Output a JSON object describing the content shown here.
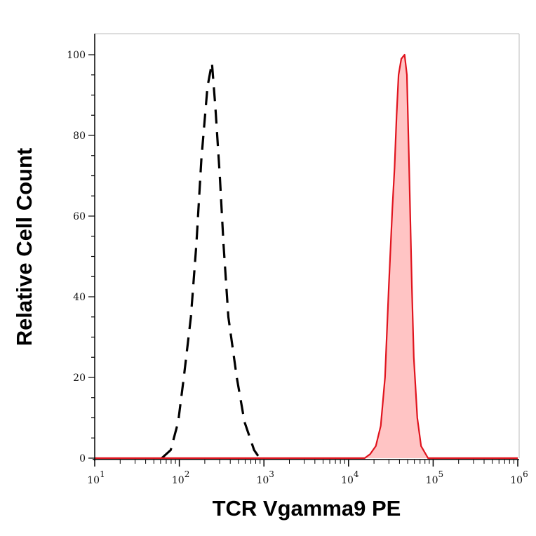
{
  "chart_data": {
    "type": "area",
    "title": "",
    "xlabel": "TCR Vgamma9 PE",
    "ylabel": "Relative Cell Count",
    "x_scale": "log",
    "xlim": [
      10,
      1000000
    ],
    "ylim": [
      0,
      100
    ],
    "x_ticks": [
      {
        "base": "10",
        "exp": "1"
      },
      {
        "base": "10",
        "exp": "2"
      },
      {
        "base": "10",
        "exp": "3"
      },
      {
        "base": "10",
        "exp": "4"
      },
      {
        "base": "10",
        "exp": "5"
      },
      {
        "base": "10",
        "exp": "6"
      }
    ],
    "y_ticks": [
      "0",
      "20",
      "40",
      "60",
      "80",
      "100"
    ],
    "grid": false,
    "series": [
      {
        "style": "dashed",
        "color": "#000000",
        "fill": "none",
        "points": [
          [
            62,
            0
          ],
          [
            79,
            2
          ],
          [
            97,
            9
          ],
          [
            113,
            20
          ],
          [
            137,
            35
          ],
          [
            159,
            53
          ],
          [
            182,
            74
          ],
          [
            215,
            92
          ],
          [
            243,
            98
          ],
          [
            267,
            87
          ],
          [
            301,
            70
          ],
          [
            333,
            53
          ],
          [
            380,
            35
          ],
          [
            478,
            20
          ],
          [
            589,
            9
          ],
          [
            766,
            2
          ],
          [
            890,
            0
          ]
        ]
      },
      {
        "style": "solid",
        "color": "#e0141e",
        "fill": "#ffc4c4",
        "points": [
          [
            10,
            0
          ],
          [
            15500,
            0
          ],
          [
            18000,
            1
          ],
          [
            21000,
            3
          ],
          [
            24000,
            8
          ],
          [
            27000,
            20
          ],
          [
            30000,
            43
          ],
          [
            33000,
            62
          ],
          [
            35000,
            72
          ],
          [
            37000,
            85
          ],
          [
            39000,
            95
          ],
          [
            42000,
            99
          ],
          [
            46000,
            100
          ],
          [
            49000,
            95
          ],
          [
            52000,
            72
          ],
          [
            56000,
            43
          ],
          [
            59000,
            25
          ],
          [
            65000,
            10
          ],
          [
            72000,
            3
          ],
          [
            87000,
            0
          ],
          [
            1000000,
            0
          ]
        ]
      }
    ]
  }
}
